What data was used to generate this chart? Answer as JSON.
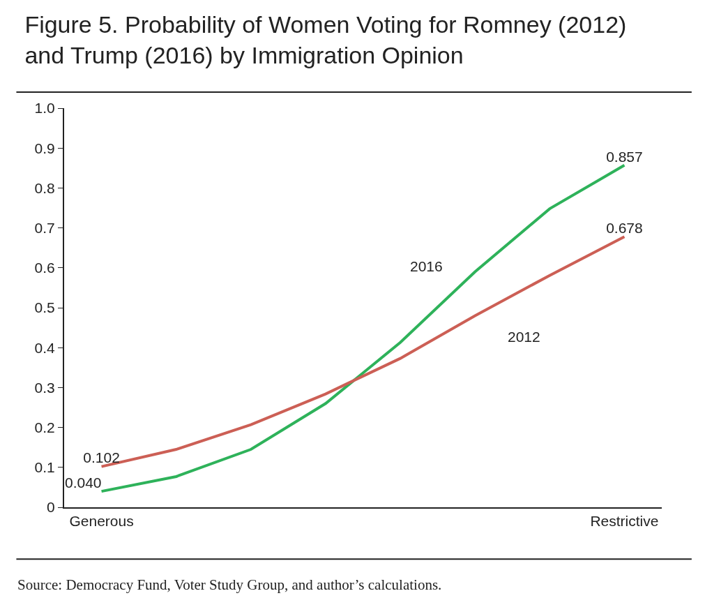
{
  "chart_data": {
    "type": "line",
    "title": "Figure 5. Probability of Women Voting for Romney (2012)\nand Trump (2016) by Immigration Opinion",
    "categories": [
      "Generous",
      null,
      null,
      null,
      null,
      null,
      null,
      "Restrictive"
    ],
    "series": [
      {
        "name": "2016",
        "color": "#2eb25a",
        "values": [
          0.04,
          0.077,
          0.145,
          0.26,
          0.413,
          0.59,
          0.748,
          0.857
        ],
        "value_labels": [
          "0.040",
          null,
          null,
          null,
          null,
          null,
          null,
          "0.857"
        ]
      },
      {
        "name": "2012",
        "color": "#cc5f55",
        "values": [
          0.102,
          0.145,
          0.207,
          0.284,
          0.373,
          0.48,
          0.581,
          0.678
        ],
        "value_labels": [
          "0.102",
          null,
          null,
          null,
          null,
          null,
          null,
          "0.678"
        ]
      }
    ],
    "ylim": [
      0,
      1
    ],
    "yticks": [
      0,
      0.1,
      0.2,
      0.3,
      0.4,
      0.5,
      0.6,
      0.7,
      0.8,
      0.9,
      {
        "value": 1,
        "label": "1.0"
      }
    ],
    "grid": false,
    "legend": false,
    "marker": "none",
    "line_style": "solid",
    "annotations": [
      "Source: Democracy Fund, Voter Study Group, and author’s calculations."
    ]
  }
}
